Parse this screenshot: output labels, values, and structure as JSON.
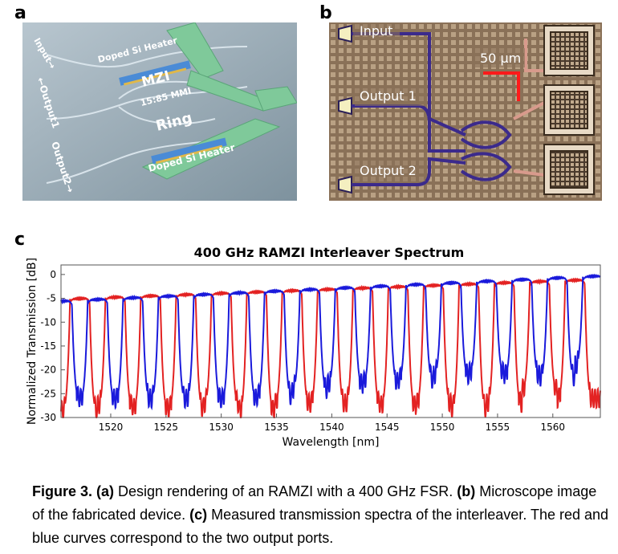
{
  "panel_a": {
    "letter": "a",
    "labels": {
      "input": "Input→",
      "output1": "←Output1",
      "output2": "Output2→",
      "heater_top": "Doped Si Heater",
      "mzi": "MZI",
      "mmi": "15:85 MMI",
      "ring": "Ring",
      "heater_bottom": "Doped Si Heater"
    }
  },
  "panel_b": {
    "letter": "b",
    "labels": {
      "input": "Input",
      "output1": "Output 1",
      "output2": "Output 2",
      "scale": "50 μm"
    }
  },
  "panel_c": {
    "letter": "c"
  },
  "chart_data": {
    "type": "line",
    "title": "400 GHz RAMZI Interleaver Spectrum",
    "xlabel": "Wavelength [nm]",
    "ylabel": "Normalized Transmission [dB]",
    "xlim": [
      1515.5,
      1564.3
    ],
    "ylim": [
      -30,
      2
    ],
    "xticks": [
      1520,
      1525,
      1530,
      1535,
      1540,
      1545,
      1550,
      1555,
      1560
    ],
    "yticks": [
      0,
      -5,
      -10,
      -15,
      -20,
      -25,
      -30
    ],
    "channel_spacing_nm": 1.6,
    "series": [
      {
        "color": "#e32222",
        "passband_centers_nm": [
          1517.2,
          1520.4,
          1523.6,
          1526.8,
          1530.0,
          1533.2,
          1536.4,
          1539.6,
          1542.8,
          1546.0,
          1549.2,
          1552.4,
          1555.6,
          1558.8,
          1562.0
        ],
        "passband_level_db": {
          "start": -5.2,
          "end": -1.0
        },
        "stopband_floor_db": [
          -28.5,
          -27.5,
          -28.0,
          -28.0,
          -27.0,
          -28.5,
          -27.0,
          -27.0,
          -27.0,
          -27.5,
          -27.0,
          -28.0,
          -27.0,
          -24.0,
          -26.0
        ]
      },
      {
        "color": "#1a1adb",
        "passband_centers_nm": [
          1515.6,
          1518.8,
          1522.0,
          1525.2,
          1528.4,
          1531.6,
          1534.8,
          1538.0,
          1541.2,
          1544.4,
          1547.6,
          1550.8,
          1554.0,
          1557.2,
          1560.4,
          1563.6
        ],
        "passband_level_db": {
          "start": -5.6,
          "end": -0.3
        },
        "stopband_floor_db": [
          -25.8,
          -26.0,
          -26.0,
          -26.0,
          -26.0,
          -26.0,
          -25.5,
          -24.0,
          -23.0,
          -22.5,
          -22.0,
          -21.0,
          -20.5,
          -21.0,
          -21.5,
          -19.0
        ]
      }
    ]
  },
  "caption": {
    "figure_label": "Figure 3.",
    "part_a_tag": "(a)",
    "part_a_text": " Design rendering of an RAMZI with a 400 GHz FSR. ",
    "part_b_tag": "(b)",
    "part_b_text": " Microscope image of the fabricated device. ",
    "part_c_tag": "(c)",
    "part_c_text": " Measured transmission spectra of the interleaver. The red and blue curves correspond to the two output ports."
  }
}
